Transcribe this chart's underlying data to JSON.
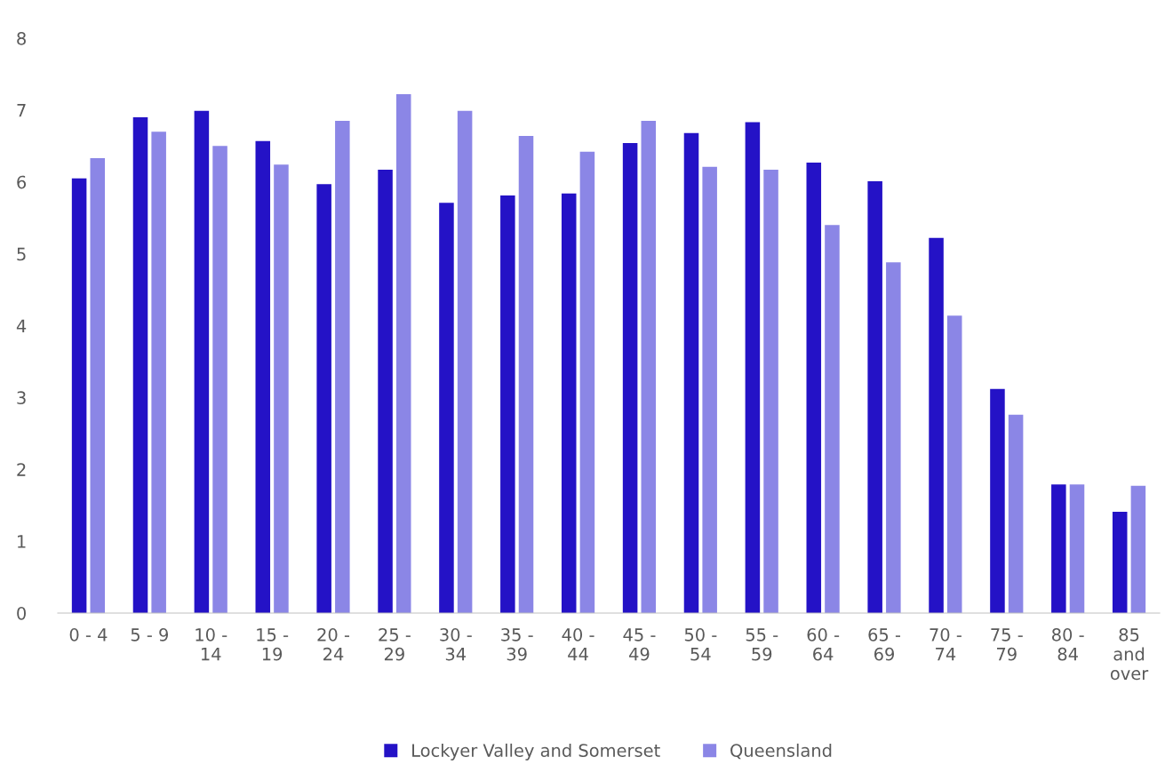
{
  "chart_data": {
    "type": "bar",
    "categories": [
      "0 - 4",
      "5 - 9",
      "10 - 14",
      "15 - 19",
      "20 - 24",
      "25 - 29",
      "30 - 34",
      "35 - 39",
      "40 - 44",
      "45 - 49",
      "50 - 54",
      "55 - 59",
      "60 - 64",
      "65 - 69",
      "70 - 74",
      "75 - 79",
      "80 - 84",
      "85 and over"
    ],
    "series": [
      {
        "name": "Lockyer Valley and Somerset",
        "color": "#2412c6",
        "values": [
          6.05,
          6.9,
          6.99,
          6.57,
          5.97,
          6.17,
          5.71,
          5.81,
          5.84,
          6.54,
          6.68,
          6.83,
          6.27,
          6.01,
          5.22,
          3.12,
          1.79,
          1.41
        ]
      },
      {
        "name": "Queensland",
        "color": "#8b86e6",
        "values": [
          6.33,
          6.7,
          6.5,
          6.24,
          6.85,
          7.22,
          6.99,
          6.64,
          6.42,
          6.85,
          6.21,
          6.17,
          5.4,
          4.88,
          4.14,
          2.76,
          1.79,
          1.77
        ]
      }
    ],
    "ylim": [
      0,
      8
    ],
    "yticks": [
      0,
      1,
      2,
      3,
      4,
      5,
      6,
      7,
      8
    ],
    "grid": false,
    "legend": "bottom"
  }
}
